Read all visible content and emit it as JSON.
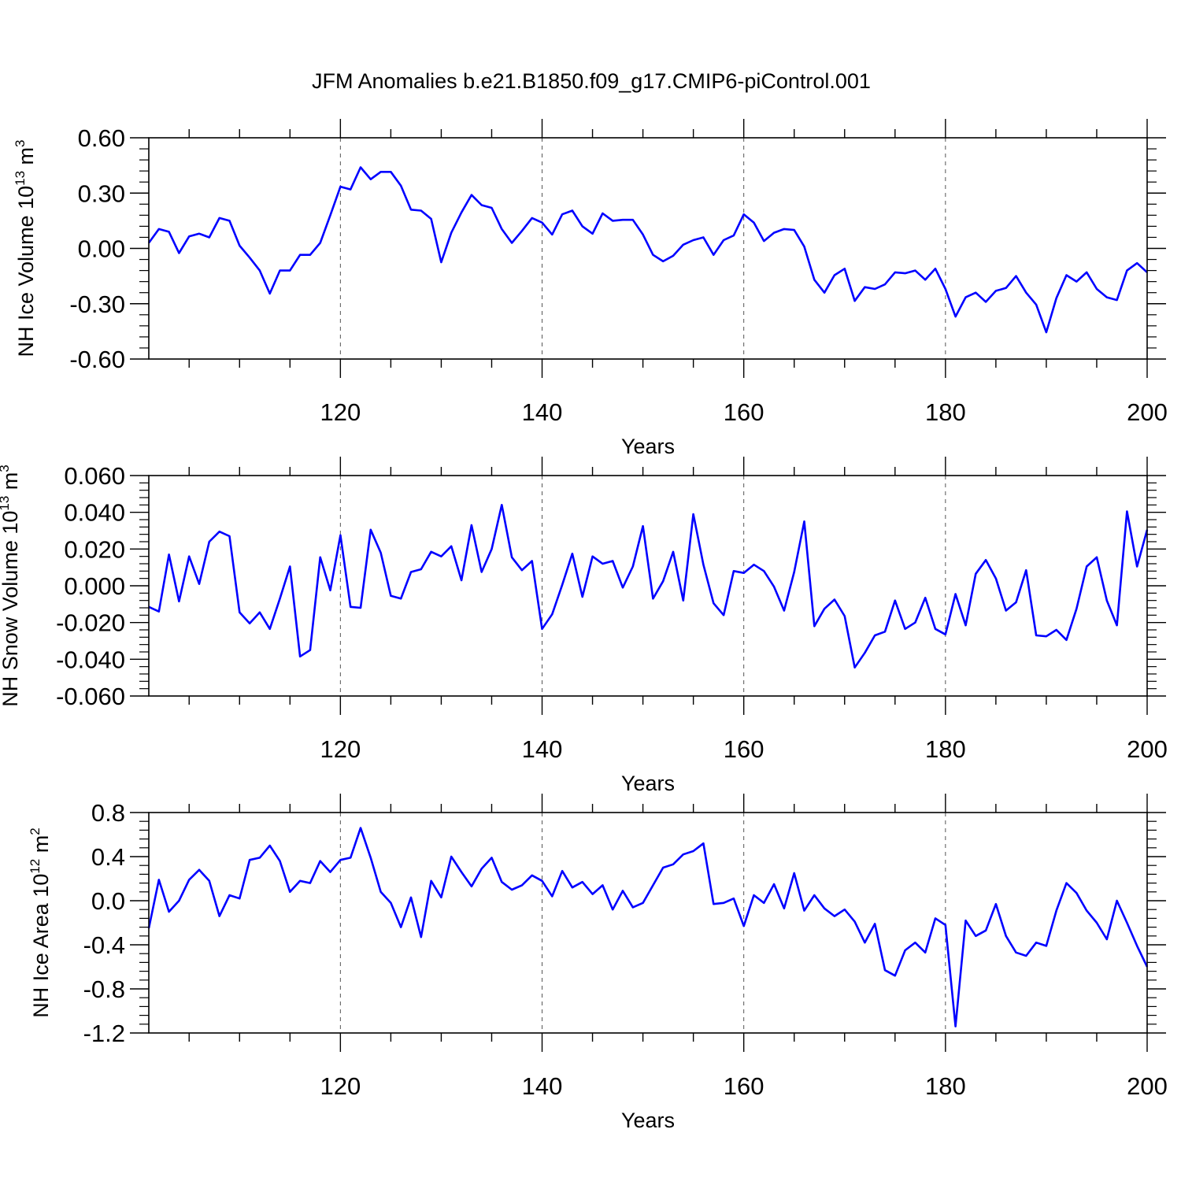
{
  "title": "JFM Anomalies b.e21.B1850.f09_g17.CMIP6-piControl.001",
  "chart_data": [
    {
      "type": "line",
      "ylabel": {
        "text": "NH Ice Volume 10",
        "sup": "13",
        "unit": " m",
        "unit_sup": "3"
      },
      "xlabel": "Years",
      "xlim": [
        101,
        200
      ],
      "ylim": [
        -0.6,
        0.6
      ],
      "yticks": [
        "0.60",
        "0.30",
        "0.00",
        "-0.30",
        "-0.60"
      ],
      "ytick_values": [
        0.6,
        0.3,
        0.0,
        -0.3,
        -0.6
      ],
      "xticks": [
        "120",
        "140",
        "160",
        "180",
        "200"
      ],
      "xtick_values": [
        120,
        140,
        160,
        180,
        200
      ],
      "line_color": "#0000ff",
      "x_start": 101,
      "values": [
        0.03,
        0.105,
        0.09,
        -0.025,
        0.065,
        0.08,
        0.06,
        0.165,
        0.15,
        0.015,
        -0.05,
        -0.12,
        -0.245,
        -0.12,
        -0.12,
        -0.035,
        -0.035,
        0.03,
        0.18,
        0.335,
        0.32,
        0.44,
        0.375,
        0.415,
        0.415,
        0.34,
        0.21,
        0.205,
        0.16,
        -0.075,
        0.085,
        0.195,
        0.29,
        0.235,
        0.22,
        0.105,
        0.03,
        0.095,
        0.165,
        0.14,
        0.075,
        0.185,
        0.205,
        0.12,
        0.08,
        0.19,
        0.15,
        0.155,
        0.155,
        0.075,
        -0.035,
        -0.07,
        -0.04,
        0.02,
        0.045,
        0.06,
        -0.035,
        0.045,
        0.07,
        0.185,
        0.14,
        0.04,
        0.085,
        0.105,
        0.1,
        0.01,
        -0.17,
        -0.24,
        -0.145,
        -0.11,
        -0.285,
        -0.21,
        -0.22,
        -0.195,
        -0.13,
        -0.135,
        -0.12,
        -0.17,
        -0.11,
        -0.22,
        -0.37,
        -0.265,
        -0.24,
        -0.29,
        -0.23,
        -0.215,
        -0.15,
        -0.24,
        -0.305,
        -0.455,
        -0.27,
        -0.145,
        -0.18,
        -0.13,
        -0.22,
        -0.265,
        -0.28,
        -0.12,
        -0.08,
        -0.13
      ]
    },
    {
      "type": "line",
      "ylabel": {
        "text": "NH Snow Volume 10",
        "sup": "13",
        "unit": " m",
        "unit_sup": "3"
      },
      "xlabel": "Years",
      "xlim": [
        101,
        200
      ],
      "ylim": [
        -0.06,
        0.06
      ],
      "yticks": [
        "0.060",
        "0.040",
        "0.020",
        "0.000",
        "-0.020",
        "-0.040",
        "-0.060"
      ],
      "ytick_values": [
        0.06,
        0.04,
        0.02,
        0.0,
        -0.02,
        -0.04,
        -0.06
      ],
      "xticks": [
        "120",
        "140",
        "160",
        "180",
        "200"
      ],
      "xtick_values": [
        120,
        140,
        160,
        180,
        200
      ],
      "line_color": "#0000ff",
      "x_start": 101,
      "values": [
        -0.0115,
        -0.014,
        0.017,
        -0.0085,
        0.016,
        0.001,
        0.024,
        0.0295,
        0.027,
        -0.0145,
        -0.0205,
        -0.0145,
        -0.0235,
        -0.007,
        0.0105,
        -0.0385,
        -0.035,
        0.0155,
        -0.0025,
        0.0275,
        -0.0115,
        -0.012,
        0.0305,
        0.018,
        -0.0055,
        -0.007,
        0.0075,
        0.009,
        0.0185,
        0.016,
        0.0215,
        0.003,
        0.033,
        0.0075,
        0.02,
        0.044,
        0.0155,
        0.0085,
        0.0135,
        -0.0235,
        -0.0155,
        0.0005,
        0.0175,
        -0.006,
        0.016,
        0.012,
        0.0135,
        -0.001,
        0.0105,
        0.0325,
        -0.007,
        0.0025,
        0.0185,
        -0.008,
        0.039,
        0.0115,
        -0.0095,
        -0.016,
        0.008,
        0.007,
        0.0115,
        0.008,
        -0.0005,
        -0.0135,
        0.0075,
        0.035,
        -0.022,
        -0.0125,
        -0.0075,
        -0.0165,
        -0.0445,
        -0.0365,
        -0.027,
        -0.025,
        -0.008,
        -0.0235,
        -0.02,
        -0.0065,
        -0.0235,
        -0.0265,
        -0.0045,
        -0.0215,
        0.0065,
        0.014,
        0.004,
        -0.0135,
        -0.009,
        0.0085,
        -0.027,
        -0.0275,
        -0.024,
        -0.0295,
        -0.0125,
        0.0105,
        0.0155,
        -0.008,
        -0.0215,
        0.0405,
        0.0105,
        0.0305
      ]
    },
    {
      "type": "line",
      "ylabel": {
        "text": "NH Ice Area 10",
        "sup": "12",
        "unit": " m",
        "unit_sup": "2"
      },
      "xlabel": "Years",
      "xlim": [
        101,
        200
      ],
      "ylim": [
        -1.2,
        0.8
      ],
      "yticks": [
        "0.8",
        "0.4",
        "0.0",
        "-0.4",
        "-0.8",
        "-1.2"
      ],
      "ytick_values": [
        0.8,
        0.4,
        0.0,
        -0.4,
        -0.8,
        -1.2
      ],
      "xticks": [
        "120",
        "140",
        "160",
        "180",
        "200"
      ],
      "xtick_values": [
        120,
        140,
        160,
        180,
        200
      ],
      "line_color": "#0000ff",
      "x_start": 101,
      "values": [
        -0.25,
        0.19,
        -0.1,
        0.0,
        0.19,
        0.28,
        0.18,
        -0.14,
        0.05,
        0.02,
        0.37,
        0.39,
        0.5,
        0.36,
        0.08,
        0.18,
        0.16,
        0.36,
        0.26,
        0.37,
        0.39,
        0.66,
        0.39,
        0.08,
        -0.02,
        -0.24,
        0.03,
        -0.33,
        0.18,
        0.03,
        0.4,
        0.26,
        0.13,
        0.29,
        0.39,
        0.17,
        0.1,
        0.14,
        0.23,
        0.18,
        0.04,
        0.27,
        0.12,
        0.17,
        0.06,
        0.14,
        -0.08,
        0.09,
        -0.06,
        -0.02,
        0.14,
        0.3,
        0.33,
        0.42,
        0.45,
        0.52,
        -0.03,
        -0.02,
        0.02,
        -0.23,
        0.05,
        -0.02,
        0.15,
        -0.07,
        0.25,
        -0.09,
        0.05,
        -0.07,
        -0.14,
        -0.08,
        -0.19,
        -0.38,
        -0.21,
        -0.63,
        -0.68,
        -0.45,
        -0.38,
        -0.47,
        -0.16,
        -0.22,
        -1.14,
        -0.18,
        -0.32,
        -0.27,
        -0.03,
        -0.32,
        -0.47,
        -0.5,
        -0.38,
        -0.41,
        -0.09,
        0.16,
        0.07,
        -0.09,
        -0.2,
        -0.35,
        0.0,
        -0.2,
        -0.41,
        -0.6
      ]
    }
  ]
}
